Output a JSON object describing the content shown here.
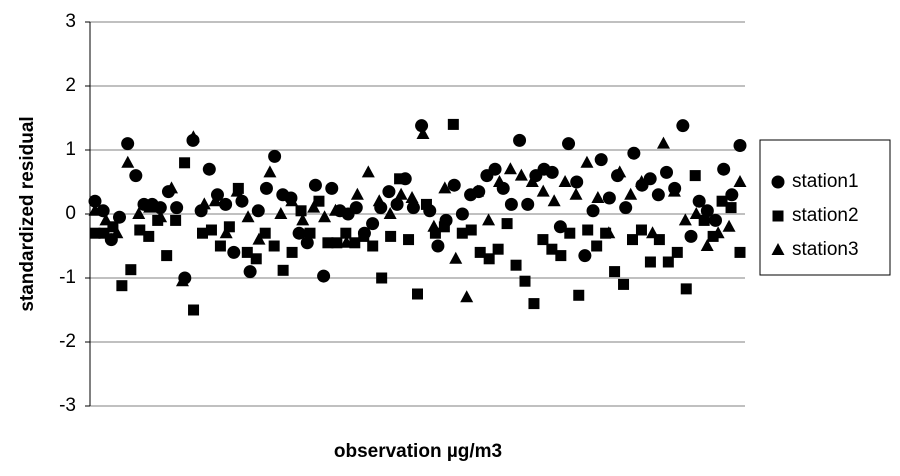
{
  "chart_data": {
    "type": "scatter",
    "xlabel": "observation µg/m3",
    "ylabel": "standardized residual",
    "ylim": [
      -3,
      3
    ],
    "yticks": [
      -3,
      -2,
      -1,
      0,
      1,
      2,
      3
    ],
    "grid": true,
    "legend": "right",
    "series": [
      {
        "name": "station1",
        "color": "#000000",
        "marker": "circle",
        "values": [
          0.2,
          0.05,
          -0.4,
          -0.05,
          1.1,
          0.6,
          0.15,
          0.15,
          0.1,
          0.35,
          0.1,
          -1.0,
          1.15,
          0.05,
          0.7,
          0.3,
          0.15,
          -0.6,
          0.2,
          -0.9,
          0.05,
          0.4,
          0.9,
          0.3,
          0.25,
          -0.3,
          -0.45,
          0.45,
          -0.97,
          0.4,
          0.05,
          0.0,
          0.1,
          -0.3,
          -0.15,
          0.1,
          0.35,
          0.15,
          0.55,
          0.1,
          1.38,
          0.05,
          -0.5,
          -0.1,
          0.45,
          0.0,
          0.3,
          0.35,
          0.6,
          0.7,
          0.4,
          0.15,
          1.15,
          0.15,
          0.6,
          0.7,
          0.65,
          -0.2,
          1.1,
          0.5,
          -0.65,
          0.05,
          0.85,
          0.25,
          0.6,
          0.1,
          0.95,
          0.45,
          0.55,
          0.3,
          0.65,
          0.4,
          1.38,
          -0.35,
          0.2,
          0.05,
          -0.1,
          0.7,
          0.3,
          1.07
        ]
      },
      {
        "name": "station2",
        "color": "#000000",
        "marker": "square",
        "values": [
          -0.3,
          -0.3,
          -0.2,
          -1.12,
          -0.87,
          -0.25,
          -0.35,
          -0.1,
          -0.65,
          -0.1,
          0.8,
          -1.5,
          -0.3,
          -0.25,
          -0.5,
          -0.2,
          0.4,
          -0.6,
          -0.7,
          -0.3,
          -0.5,
          -0.88,
          -0.6,
          0.05,
          -0.3,
          0.2,
          -0.45,
          -0.45,
          -0.3,
          -0.45,
          -0.35,
          -0.5,
          -1.0,
          -0.35,
          0.55,
          -0.4,
          -1.25,
          0.15,
          -0.3,
          -0.2,
          1.4,
          -0.3,
          -0.25,
          -0.6,
          -0.7,
          -0.55,
          -0.15,
          -0.8,
          -1.05,
          -1.4,
          -0.4,
          -0.55,
          -0.65,
          -0.3,
          -1.27,
          -0.25,
          -0.5,
          -0.3,
          -0.9,
          -1.1,
          -0.4,
          -0.25,
          -0.75,
          -0.4,
          -0.75,
          -0.6,
          -1.17,
          0.6,
          -0.1,
          -0.35,
          0.2,
          0.1,
          -0.6
        ]
      },
      {
        "name": "station3",
        "color": "#000000",
        "marker": "triangle",
        "values": [
          0.05,
          -0.1,
          -0.3,
          0.8,
          0.0,
          0.1,
          -0.05,
          0.4,
          -1.05,
          1.2,
          0.15,
          0.2,
          -0.3,
          0.35,
          -0.05,
          -0.4,
          0.65,
          0.0,
          0.2,
          -0.1,
          0.1,
          -0.05,
          0.05,
          -0.45,
          0.3,
          0.65,
          0.2,
          0.0,
          0.3,
          0.25,
          1.25,
          -0.2,
          0.4,
          -0.7,
          -1.3,
          0.35,
          -0.1,
          0.5,
          0.7,
          0.6,
          0.5,
          0.35,
          0.2,
          0.5,
          0.3,
          0.8,
          0.25,
          -0.3,
          0.65,
          0.3,
          0.5,
          -0.3,
          1.1,
          0.35,
          -0.1,
          0.0,
          -0.5,
          -0.3,
          -0.2,
          0.5
        ]
      }
    ]
  }
}
